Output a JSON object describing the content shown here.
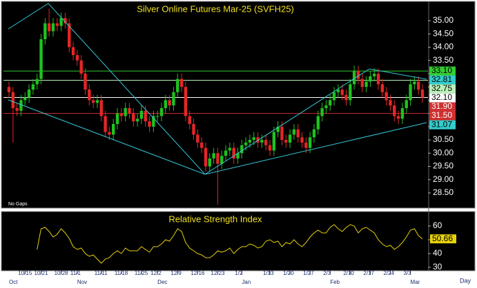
{
  "chart_data": [
    {
      "type": "candlestick",
      "title": "Silver Online Futures Mar-25 (SVFH25)",
      "note": "No Gaps",
      "categories": [
        null,
        null,
        null,
        null,
        "10/15",
        null,
        null,
        null,
        "10/21",
        null,
        null,
        null,
        null,
        "10/28",
        null,
        null,
        null,
        "11/1",
        null,
        null,
        null,
        null,
        null,
        "11/11",
        null,
        null,
        null,
        null,
        "11/18",
        null,
        null,
        null,
        null,
        "11/25",
        null,
        null,
        null,
        "12/2",
        null,
        null,
        null,
        null,
        "12/9",
        null,
        null,
        null,
        null,
        "12/16",
        null,
        null,
        null,
        null,
        "12/23",
        null,
        null,
        null,
        null,
        null,
        "1/2",
        null,
        null,
        null,
        null,
        null,
        null,
        "1/13",
        null,
        null,
        null,
        null,
        "1/20",
        null,
        null,
        null,
        null,
        "1/27",
        null,
        null,
        null,
        null,
        "2/3",
        null,
        null,
        null,
        null,
        "2/10",
        null,
        null,
        null,
        null,
        "2/17",
        null,
        null,
        null,
        null,
        "2/24",
        null,
        null,
        null,
        null,
        "3/3",
        null,
        null,
        null
      ],
      "month_labels": [
        "Oct",
        null,
        null,
        null,
        null,
        null,
        null,
        null,
        null,
        null,
        null,
        null,
        null,
        null,
        null,
        null,
        null,
        "Nov",
        null,
        null,
        null,
        null,
        null,
        null,
        null,
        null,
        null,
        null,
        null,
        null,
        null,
        null,
        null,
        null,
        null,
        null,
        null,
        "Dec",
        null,
        null,
        null,
        null,
        null,
        null,
        null,
        null,
        null,
        null,
        null,
        null,
        null,
        null,
        null,
        null,
        null,
        null,
        null,
        null,
        "Jan",
        null,
        null,
        null,
        null,
        null,
        null,
        null,
        null,
        null,
        null,
        null,
        null,
        null,
        null,
        null,
        null,
        null,
        null,
        null,
        null,
        null,
        "Feb",
        null,
        null,
        null,
        null,
        null,
        null,
        null,
        null,
        null,
        null,
        null,
        null,
        null,
        null,
        null,
        null,
        null,
        null,
        null,
        "Mar",
        null,
        null,
        null
      ],
      "open": [
        32.5,
        32.3,
        31.7,
        31.6,
        32.0,
        32.1,
        32.4,
        32.6,
        32.8,
        34.3,
        34.9,
        34.6,
        34.9,
        34.8,
        35.1,
        34.9,
        34.0,
        33.7,
        33.5,
        33.0,
        32.4,
        32.0,
        31.9,
        32.0,
        31.4,
        30.8,
        30.7,
        31.1,
        31.5,
        31.4,
        31.7,
        31.5,
        31.2,
        31.3,
        31.6,
        31.2,
        31.0,
        31.4,
        31.4,
        31.7,
        32.0,
        31.8,
        32.3,
        32.8,
        32.5,
        31.4,
        31.1,
        30.7,
        30.4,
        30.2,
        29.5,
        29.8,
        30.0,
        29.6,
        29.9,
        30.1,
        30.2,
        29.8,
        30.0,
        30.3,
        30.4,
        30.5,
        30.6,
        30.4,
        30.5,
        30.3,
        30.1,
        30.8,
        31.0,
        30.5,
        30.4,
        30.7,
        30.9,
        30.6,
        30.4,
        30.2,
        30.6,
        30.9,
        31.4,
        31.7,
        31.8,
        32.0,
        32.3,
        32.4,
        32.2,
        32.0,
        32.6,
        33.1,
        32.8,
        32.5,
        32.7,
        32.9,
        33.0,
        32.6,
        32.3,
        32.0,
        31.8,
        31.4,
        31.3,
        31.7,
        32.0,
        32.6,
        32.7,
        32.4
      ],
      "high": [
        32.7,
        32.5,
        31.9,
        32.2,
        32.3,
        32.6,
        32.8,
        33.0,
        34.5,
        35.1,
        35.45,
        35.1,
        35.1,
        35.3,
        35.3,
        35.1,
        34.2,
        33.9,
        33.7,
        33.2,
        32.6,
        32.2,
        32.2,
        32.2,
        31.6,
        31.0,
        31.3,
        31.7,
        31.7,
        31.9,
        31.9,
        31.7,
        31.5,
        31.8,
        31.8,
        31.4,
        31.6,
        31.6,
        31.9,
        32.2,
        32.2,
        32.5,
        33.0,
        33.0,
        32.7,
        31.6,
        31.3,
        30.9,
        30.6,
        30.4,
        30.0,
        30.2,
        30.2,
        30.1,
        30.3,
        30.4,
        30.4,
        30.2,
        30.5,
        30.6,
        30.7,
        30.8,
        30.8,
        30.7,
        30.7,
        30.5,
        31.0,
        31.2,
        31.2,
        30.7,
        30.9,
        31.1,
        31.1,
        30.8,
        30.6,
        30.8,
        31.1,
        31.6,
        31.9,
        32.0,
        32.2,
        32.5,
        32.6,
        32.6,
        32.4,
        32.8,
        33.3,
        33.3,
        33.0,
        32.9,
        33.1,
        33.2,
        33.2,
        32.8,
        32.5,
        32.2,
        32.0,
        31.6,
        31.9,
        32.2,
        32.8,
        32.9,
        32.9,
        32.6
      ],
      "low": [
        32.1,
        30.4,
        31.4,
        31.4,
        31.8,
        31.9,
        32.2,
        32.4,
        32.6,
        34.1,
        34.4,
        34.4,
        34.6,
        34.6,
        34.7,
        33.8,
        33.5,
        33.3,
        32.8,
        32.2,
        31.8,
        31.7,
        31.7,
        31.2,
        30.6,
        30.5,
        30.5,
        30.9,
        31.2,
        31.2,
        31.3,
        31.0,
        31.0,
        31.1,
        31.0,
        30.8,
        30.8,
        31.2,
        31.2,
        31.5,
        31.6,
        31.6,
        32.1,
        32.3,
        31.2,
        30.9,
        30.5,
        30.2,
        30.0,
        29.3,
        29.3,
        29.6,
        28.05,
        29.4,
        29.7,
        29.9,
        29.6,
        29.6,
        29.8,
        30.1,
        30.2,
        30.3,
        30.2,
        30.2,
        30.1,
        29.9,
        29.9,
        30.6,
        30.3,
        30.2,
        30.2,
        30.5,
        30.4,
        30.2,
        30.0,
        30.0,
        30.4,
        30.7,
        31.2,
        31.5,
        31.6,
        31.8,
        32.1,
        32.0,
        31.8,
        31.8,
        32.4,
        32.6,
        32.3,
        32.3,
        32.5,
        32.7,
        32.4,
        32.1,
        31.8,
        31.6,
        31.2,
        31.1,
        31.1,
        31.5,
        31.8,
        32.4,
        32.2,
        31.9
      ],
      "close": [
        32.3,
        31.7,
        31.6,
        32.0,
        32.1,
        32.4,
        32.6,
        32.8,
        34.3,
        34.9,
        34.6,
        34.9,
        34.8,
        35.1,
        34.9,
        34.0,
        33.7,
        33.5,
        33.0,
        32.4,
        32.0,
        31.9,
        32.0,
        31.4,
        30.8,
        30.7,
        31.1,
        31.5,
        31.4,
        31.7,
        31.5,
        31.2,
        31.3,
        31.6,
        31.2,
        31.0,
        31.4,
        31.4,
        31.7,
        32.0,
        31.8,
        32.3,
        32.8,
        32.5,
        31.4,
        31.1,
        30.7,
        30.4,
        30.2,
        29.5,
        29.8,
        30.0,
        29.6,
        29.9,
        30.1,
        30.2,
        29.8,
        30.0,
        30.3,
        30.4,
        30.5,
        30.6,
        30.4,
        30.5,
        30.3,
        30.1,
        30.8,
        31.0,
        30.5,
        30.4,
        30.7,
        30.9,
        30.6,
        30.4,
        30.2,
        30.6,
        30.9,
        31.4,
        31.7,
        31.8,
        32.0,
        32.3,
        32.4,
        32.2,
        32.0,
        32.6,
        33.1,
        32.8,
        32.5,
        32.7,
        32.9,
        33.0,
        32.6,
        32.3,
        32.0,
        31.8,
        31.4,
        31.3,
        31.7,
        32.0,
        32.6,
        32.7,
        32.4,
        32.1
      ],
      "up_color": "#1fc21f",
      "down_color": "#e42626",
      "ylim": [
        27.98,
        35.65
      ],
      "yticks": [
        {
          "value": 28.5,
          "label": "28.50"
        },
        {
          "value": 29,
          "label": "29.00"
        },
        {
          "value": 29.5,
          "label": "29.50"
        },
        {
          "value": 30,
          "label": "30.00"
        },
        {
          "value": 30.5,
          "label": "30.50"
        },
        {
          "value": 31,
          "label": "31.00"
        },
        {
          "value": 31.5,
          "label": "31.50"
        },
        {
          "value": 32,
          "label": "32.00"
        },
        {
          "value": 32.5,
          "label": "32.50"
        },
        {
          "value": 33,
          "label": "33.00"
        },
        {
          "value": 33.5,
          "label": "33.50"
        },
        {
          "value": 34,
          "label": "34.00"
        },
        {
          "value": 34.5,
          "label": "34.50"
        },
        {
          "value": 35,
          "label": "35.00"
        }
      ],
      "price_labels": [
        {
          "value": 33.1,
          "label": "33.10",
          "color": "#33cc33",
          "text_color": "#000000",
          "line": true
        },
        {
          "value": 32.81,
          "label": "32.81",
          "color": "#33cccc",
          "text_color": "#000000",
          "line": false
        },
        {
          "value": 32.75,
          "label": "32.75",
          "color": "#b8f0b8",
          "text_color": "#000000",
          "line": true
        },
        {
          "value": 32.1,
          "label": "32.10",
          "color": "#ffffff",
          "text_color": "#000000",
          "line": true
        },
        {
          "value": 31.9,
          "label": "31.90",
          "color": "#d03030",
          "text_color": "#ffffff",
          "line": false
        },
        {
          "value": 31.5,
          "label": "31.50",
          "color": "#d03030",
          "text_color": "#ffffff",
          "line": true
        },
        {
          "value": 31.07,
          "label": "31.07",
          "color": "#33cccc",
          "text_color": "#000000",
          "line": false
        }
      ]
    },
    {
      "type": "line",
      "title": "Relative Strength Index",
      "values": [
        null,
        null,
        null,
        null,
        null,
        null,
        null,
        43,
        58,
        59,
        56,
        52,
        54,
        58,
        55,
        51,
        45,
        43,
        44,
        40,
        38,
        39,
        36,
        33,
        36,
        37,
        40,
        42,
        40,
        44,
        42,
        42,
        42,
        45,
        43,
        41,
        45,
        45,
        47,
        50,
        49,
        53,
        58,
        56,
        48,
        44,
        42,
        40,
        39,
        37,
        37,
        39,
        42,
        41,
        42,
        44,
        40,
        43,
        45,
        45,
        47,
        46,
        44,
        45,
        49,
        50,
        48,
        49,
        45,
        48,
        47,
        50,
        47,
        45,
        48,
        52,
        55,
        57,
        55,
        55,
        59,
        61,
        58,
        56,
        59,
        61,
        60,
        55,
        58,
        59,
        57,
        55,
        50,
        47,
        45,
        46,
        43,
        45,
        48,
        52,
        57,
        58,
        53,
        50.66
      ],
      "color": "#e8d20a",
      "ylim": [
        28,
        69
      ],
      "yticks": [
        30,
        40,
        50,
        60
      ]
    }
  ],
  "period": "Day"
}
